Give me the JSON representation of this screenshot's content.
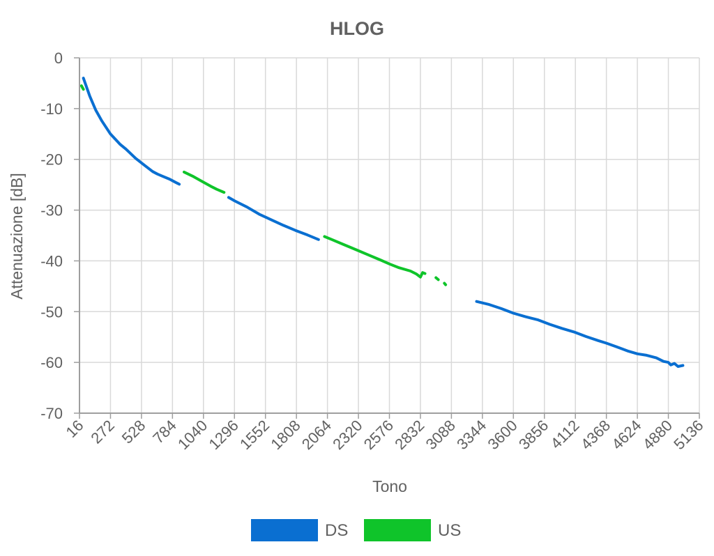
{
  "chart_data": {
    "type": "line",
    "title": "HLOG",
    "xlabel": "Tono",
    "ylabel": "Attenuazione [dB]",
    "xlim": [
      16,
      5136
    ],
    "ylim": [
      -70,
      0
    ],
    "x_ticks": [
      16,
      272,
      528,
      784,
      1040,
      1296,
      1552,
      1808,
      2064,
      2320,
      2576,
      2832,
      3088,
      3344,
      3600,
      3856,
      4112,
      4368,
      4624,
      4880,
      5136
    ],
    "y_ticks": [
      0,
      -10,
      -20,
      -30,
      -40,
      -50,
      -60,
      -70
    ],
    "grid": true,
    "legend_position": "bottom",
    "series": [
      {
        "name": "DS",
        "color": "#0a6fd1",
        "segments": [
          [
            [
              48,
              -4
            ],
            [
              100,
              -7.5
            ],
            [
              150,
              -10.3
            ],
            [
              200,
              -12.4
            ],
            [
              272,
              -15.0
            ],
            [
              350,
              -17.0
            ],
            [
              400,
              -18.0
            ],
            [
              480,
              -19.8
            ],
            [
              560,
              -21.3
            ],
            [
              620,
              -22.4
            ],
            [
              660,
              -22.9
            ],
            [
              700,
              -23.3
            ],
            [
              760,
              -23.9
            ],
            [
              800,
              -24.4
            ],
            [
              840,
              -24.9
            ]
          ],
          [
            [
              1248,
              -27.5
            ],
            [
              1300,
              -28.2
            ],
            [
              1400,
              -29.4
            ],
            [
              1500,
              -30.8
            ],
            [
              1600,
              -31.9
            ],
            [
              1700,
              -33.0
            ],
            [
              1800,
              -34.0
            ],
            [
              1900,
              -34.9
            ],
            [
              1990,
              -35.8
            ]
          ],
          [
            [
              3296,
              -48.0
            ],
            [
              3400,
              -48.6
            ],
            [
              3500,
              -49.4
            ],
            [
              3600,
              -50.3
            ],
            [
              3700,
              -51.0
            ],
            [
              3800,
              -51.6
            ],
            [
              3900,
              -52.5
            ],
            [
              4000,
              -53.3
            ],
            [
              4100,
              -54.0
            ],
            [
              4200,
              -54.9
            ],
            [
              4300,
              -55.7
            ],
            [
              4368,
              -56.2
            ],
            [
              4450,
              -56.9
            ],
            [
              4550,
              -57.8
            ],
            [
              4624,
              -58.3
            ],
            [
              4700,
              -58.6
            ],
            [
              4780,
              -59.1
            ],
            [
              4840,
              -59.8
            ],
            [
              4880,
              -60.0
            ],
            [
              4900,
              -60.5
            ],
            [
              4930,
              -60.2
            ],
            [
              4960,
              -60.8
            ],
            [
              5000,
              -60.6
            ]
          ]
        ]
      },
      {
        "name": "US",
        "color": "#0fc42a",
        "segments": [
          [
            [
              32,
              -5.5
            ],
            [
              48,
              -6.2
            ]
          ],
          [
            [
              880,
              -22.5
            ],
            [
              950,
              -23.3
            ],
            [
              1040,
              -24.5
            ],
            [
              1100,
              -25.3
            ],
            [
              1150,
              -25.9
            ],
            [
              1210,
              -26.5
            ]
          ],
          [
            [
              2040,
              -35.2
            ],
            [
              2100,
              -35.8
            ],
            [
              2200,
              -36.8
            ],
            [
              2300,
              -37.8
            ],
            [
              2400,
              -38.8
            ],
            [
              2500,
              -39.8
            ],
            [
              2576,
              -40.6
            ],
            [
              2650,
              -41.3
            ],
            [
              2750,
              -42.0
            ],
            [
              2800,
              -42.6
            ],
            [
              2832,
              -43.2
            ],
            [
              2850,
              -42.3
            ],
            [
              2870,
              -42.5
            ]
          ],
          [
            [
              2960,
              -43.3
            ],
            [
              2980,
              -43.7
            ]
          ],
          [
            [
              3030,
              -44.4
            ],
            [
              3040,
              -44.7
            ]
          ]
        ]
      }
    ]
  }
}
